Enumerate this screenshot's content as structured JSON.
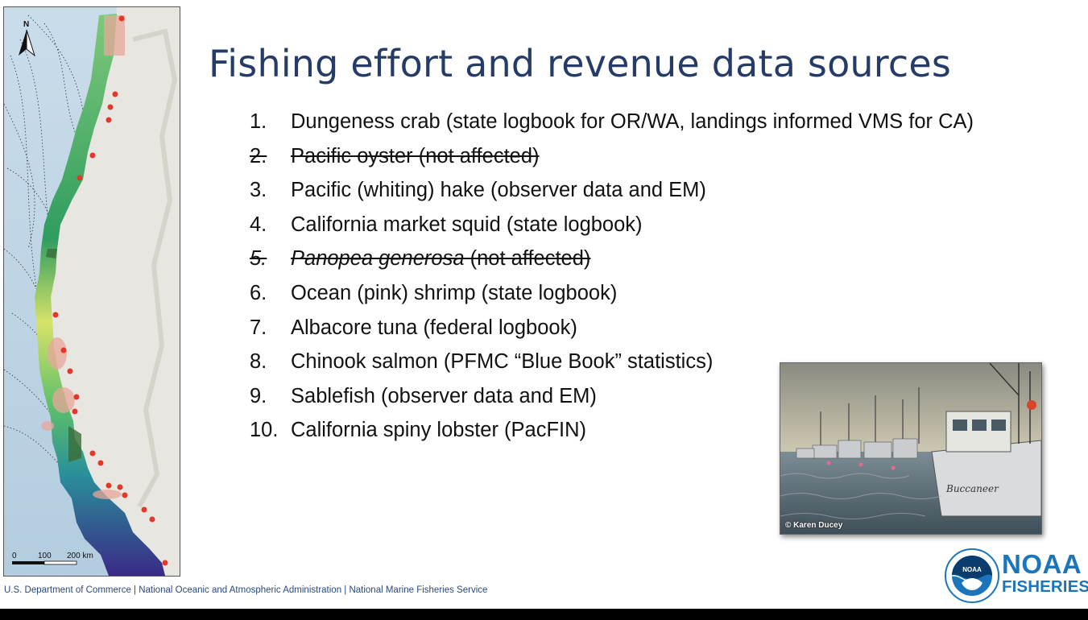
{
  "title": "Fishing effort and revenue data sources",
  "items": [
    {
      "num": "1.",
      "text": "Dungeness crab (state logbook for OR/WA, landings informed VMS for CA)"
    },
    {
      "num": "2.",
      "text": "Pacific oyster (not affected)"
    },
    {
      "num": "3.",
      "text": "Pacific (whiting) hake (observer data and EM)"
    },
    {
      "num": "4.",
      "text": "California market squid (state logbook)"
    },
    {
      "num": "5.",
      "italic": "Panopea generosa",
      "text": " (not affected)"
    },
    {
      "num": "6.",
      "text": "Ocean (pink) shrimp (state logbook)"
    },
    {
      "num": "7.",
      "text": "Albacore tuna (federal logbook)"
    },
    {
      "num": "8.",
      "text": "Chinook salmon (PFMC “Blue Book” statistics)"
    },
    {
      "num": "9.",
      "text": "Sablefish (observer data and EM)"
    },
    {
      "num": "10.",
      "text": "California spiny lobster (PacFIN)"
    }
  ],
  "map": {
    "compass_label": "N",
    "scale_labels": [
      "0",
      "100",
      "200 km"
    ]
  },
  "photo": {
    "credit": "© Karen Ducey",
    "boat_name": "Buccaneer"
  },
  "footer": "U.S. Department of Commerce  |  National Oceanic and Atmospheric Administration  |  National Marine Fisheries Service",
  "logo": {
    "seal_text": "NOAA",
    "word_big": "NOAA",
    "word_small": "FISHERIES"
  },
  "colors": {
    "title": "#253c68",
    "noaa_blue": "#1b75bb",
    "footer": "#2a4a7a"
  }
}
